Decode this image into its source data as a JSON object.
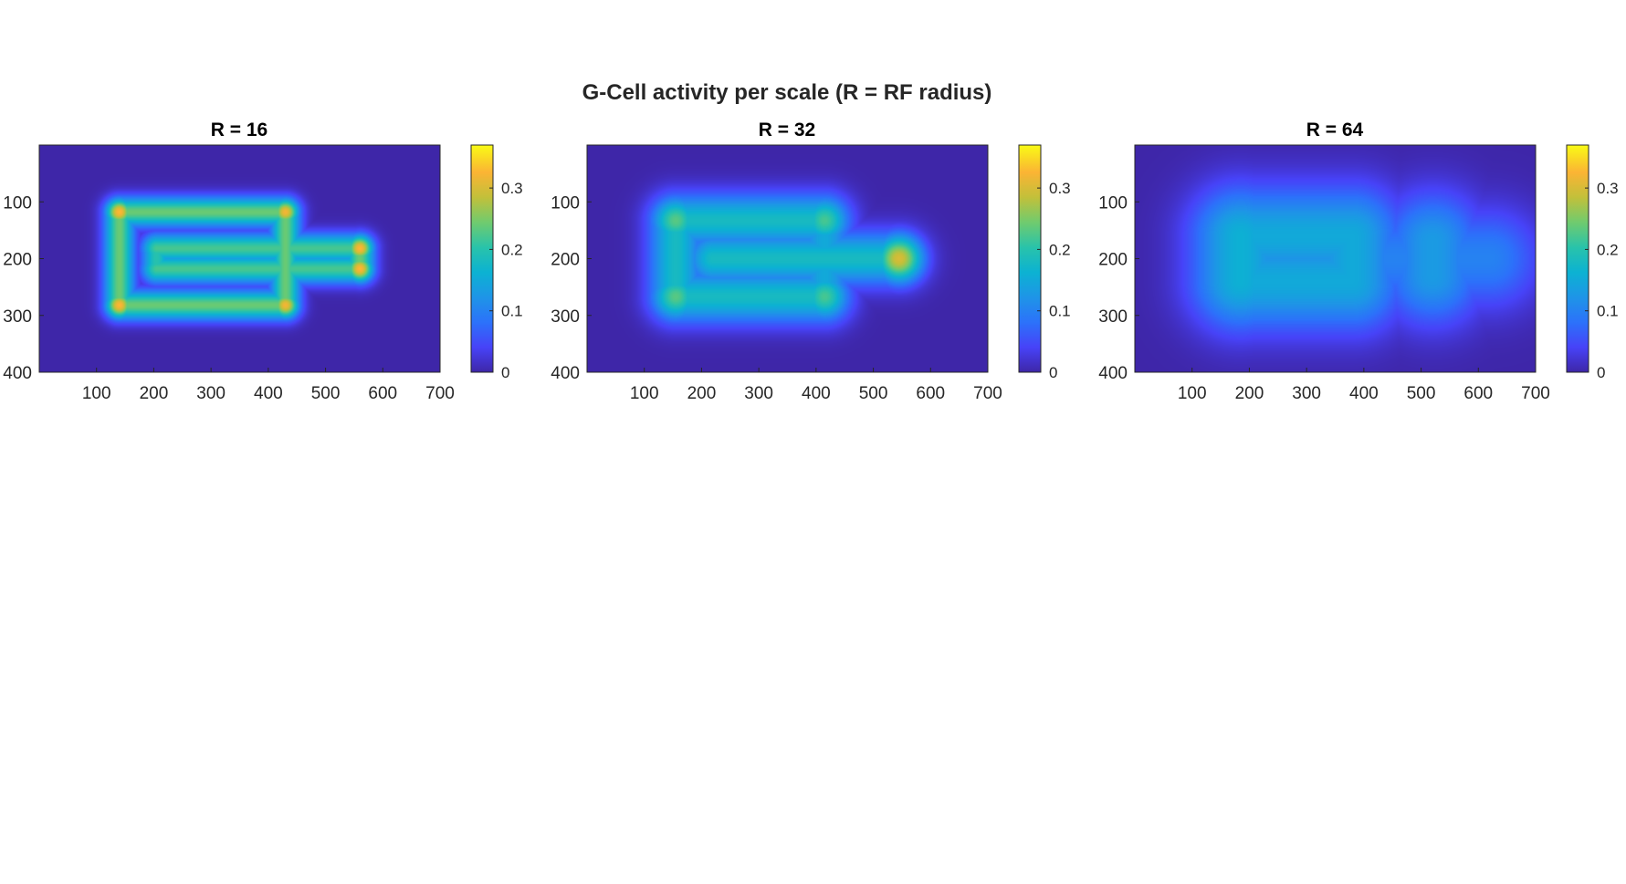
{
  "figure": {
    "title": "G-Cell activity per scale (R = RF radius)"
  },
  "chart_data": [
    {
      "type": "heatmap",
      "title": "R = 16",
      "xlim": [
        0,
        700
      ],
      "ylim": [
        0,
        400
      ],
      "y_direction": "reverse",
      "xticks": [
        100,
        200,
        300,
        400,
        500,
        600,
        700
      ],
      "yticks": [
        100,
        200,
        300,
        400
      ],
      "colorbar": {
        "clim": [
          0,
          0.37
        ],
        "ticks": [
          0,
          0.1,
          0.2,
          0.3
        ],
        "colormap": "parula"
      },
      "background_value": 0.0,
      "segments": [
        {
          "x1": 140,
          "y1": 118,
          "x2": 430,
          "y2": 118,
          "value": 0.24
        },
        {
          "x1": 140,
          "y1": 282,
          "x2": 430,
          "y2": 282,
          "value": 0.24
        },
        {
          "x1": 140,
          "y1": 118,
          "x2": 140,
          "y2": 282,
          "value": 0.24
        },
        {
          "x1": 430,
          "y1": 118,
          "x2": 430,
          "y2": 282,
          "value": 0.24
        },
        {
          "x1": 205,
          "y1": 182,
          "x2": 560,
          "y2": 182,
          "value": 0.22
        },
        {
          "x1": 205,
          "y1": 218,
          "x2": 560,
          "y2": 218,
          "value": 0.22
        },
        {
          "x1": 205,
          "y1": 182,
          "x2": 205,
          "y2": 218,
          "value": 0.2
        },
        {
          "x1": 560,
          "y1": 182,
          "x2": 560,
          "y2": 218,
          "value": 0.24
        }
      ],
      "peaks": [
        {
          "x": 140,
          "y": 118,
          "value": 0.33
        },
        {
          "x": 430,
          "y": 118,
          "value": 0.32
        },
        {
          "x": 140,
          "y": 282,
          "value": 0.33
        },
        {
          "x": 430,
          "y": 282,
          "value": 0.32
        },
        {
          "x": 560,
          "y": 182,
          "value": 0.33
        },
        {
          "x": 560,
          "y": 218,
          "value": 0.33
        }
      ]
    },
    {
      "type": "heatmap",
      "title": "R = 32",
      "xlim": [
        0,
        700
      ],
      "ylim": [
        0,
        400
      ],
      "y_direction": "reverse",
      "xticks": [
        100,
        200,
        300,
        400,
        500,
        600,
        700
      ],
      "yticks": [
        100,
        200,
        300,
        400
      ],
      "colorbar": {
        "clim": [
          0,
          0.37
        ],
        "ticks": [
          0,
          0.1,
          0.2,
          0.3
        ],
        "colormap": "parula"
      },
      "background_value": 0.0,
      "segments": [
        {
          "x1": 155,
          "y1": 133,
          "x2": 415,
          "y2": 133,
          "value": 0.18
        },
        {
          "x1": 155,
          "y1": 267,
          "x2": 415,
          "y2": 267,
          "value": 0.18
        },
        {
          "x1": 155,
          "y1": 133,
          "x2": 155,
          "y2": 267,
          "value": 0.18
        },
        {
          "x1": 415,
          "y1": 133,
          "x2": 415,
          "y2": 267,
          "value": 0.15
        },
        {
          "x1": 220,
          "y1": 200,
          "x2": 545,
          "y2": 200,
          "value": 0.18
        }
      ],
      "peaks": [
        {
          "x": 155,
          "y": 133,
          "value": 0.23
        },
        {
          "x": 415,
          "y": 133,
          "value": 0.22
        },
        {
          "x": 155,
          "y": 267,
          "value": 0.23
        },
        {
          "x": 415,
          "y": 267,
          "value": 0.22
        },
        {
          "x": 545,
          "y": 200,
          "value": 0.3
        }
      ]
    },
    {
      "type": "heatmap",
      "title": "R = 64",
      "xlim": [
        0,
        700
      ],
      "ylim": [
        0,
        400
      ],
      "y_direction": "reverse",
      "xticks": [
        100,
        200,
        300,
        400,
        500,
        600,
        700
      ],
      "yticks": [
        100,
        200,
        300,
        400
      ],
      "colorbar": {
        "clim": [
          0,
          0.37
        ],
        "ticks": [
          0,
          0.1,
          0.2,
          0.3
        ],
        "colormap": "parula"
      },
      "background_value": 0.0,
      "segments": [
        {
          "x1": 185,
          "y1": 160,
          "x2": 380,
          "y2": 160,
          "value": 0.15
        },
        {
          "x1": 185,
          "y1": 240,
          "x2": 380,
          "y2": 240,
          "value": 0.15
        },
        {
          "x1": 185,
          "y1": 160,
          "x2": 185,
          "y2": 240,
          "value": 0.16
        },
        {
          "x1": 380,
          "y1": 160,
          "x2": 380,
          "y2": 240,
          "value": 0.15
        },
        {
          "x1": 520,
          "y1": 170,
          "x2": 520,
          "y2": 230,
          "value": 0.13
        },
        {
          "x1": 185,
          "y1": 200,
          "x2": 620,
          "y2": 200,
          "value": 0.1
        }
      ],
      "peaks": []
    }
  ]
}
